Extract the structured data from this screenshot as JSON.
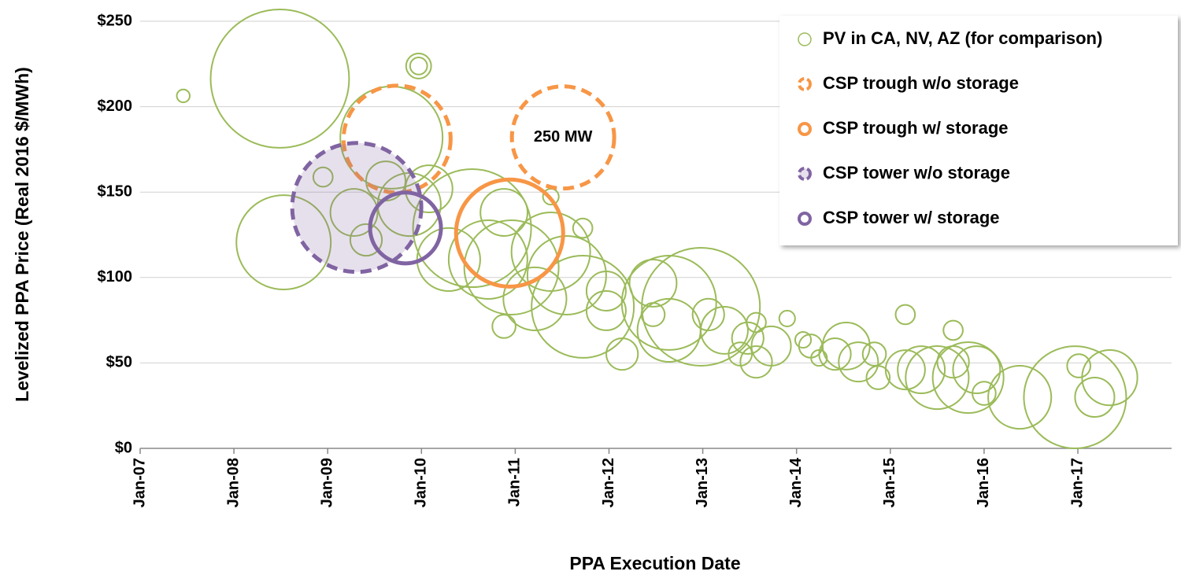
{
  "chart_data": {
    "type": "bubble",
    "x_label": "PPA Execution Date",
    "y_label": "Levelized PPA Price (Real 2016 $/MWh)",
    "annotation": "250 MW",
    "xlim": [
      2007,
      2018
    ],
    "ylim": [
      0,
      250
    ],
    "xticks": [
      {
        "value": 2007,
        "label": "Jan-07"
      },
      {
        "value": 2008,
        "label": "Jan-08"
      },
      {
        "value": 2009,
        "label": "Jan-09"
      },
      {
        "value": 2010,
        "label": "Jan-10"
      },
      {
        "value": 2011,
        "label": "Jan-11"
      },
      {
        "value": 2012,
        "label": "Jan-12"
      },
      {
        "value": 2013,
        "label": "Jan-13"
      },
      {
        "value": 2014,
        "label": "Jan-14"
      },
      {
        "value": 2015,
        "label": "Jan-15"
      },
      {
        "value": 2016,
        "label": "Jan-16"
      },
      {
        "value": 2017,
        "label": "Jan-17"
      }
    ],
    "yticks": [
      {
        "value": 0,
        "label": "$0"
      },
      {
        "value": 50,
        "label": "$50"
      },
      {
        "value": 100,
        "label": "$100"
      },
      {
        "value": 150,
        "label": "$150"
      },
      {
        "value": 200,
        "label": "$200"
      },
      {
        "value": 250,
        "label": "$250"
      }
    ],
    "grid": true,
    "legend": "upper right",
    "series": [
      {
        "name": "PV in CA, NV, AZ (for comparison)",
        "color": "#9bbb59",
        "dashed": false,
        "filled": false,
        "x": [
          2008.49,
          2007.46,
          2009.97,
          2009.97,
          2009.68,
          2008.53,
          2008.95,
          2009.28,
          2009.62,
          2009.41,
          2009.87,
          2010.08,
          2010.54,
          2010.29,
          2010.71,
          2010.88,
          2010.96,
          2011.38,
          2011.72,
          2011.21,
          2011.55,
          2011.72,
          2011.97,
          2011.38,
          2010.88,
          2012.47,
          2011.97,
          2012.14,
          2012.64,
          2012.98,
          2012.64,
          2012.47,
          2013.06,
          2013.23,
          2013.48,
          2013.4,
          2013.57,
          2013.9,
          2013.57,
          2013.73,
          2014.15,
          2014.07,
          2014.24,
          2014.41,
          2014.53,
          2014.66,
          2014.83,
          2014.87,
          2015.16,
          2015.16,
          2015.33,
          2015.5,
          2015.67,
          2015.83,
          2015.92,
          2016.0,
          2015.67,
          2016.38,
          2016.97,
          2017.18,
          2017.34,
          2017.01
        ],
        "values": [
          216.4,
          206.3,
          223.8,
          223.8,
          181.9,
          120.6,
          158.8,
          138.1,
          156.5,
          122.0,
          142.7,
          151.9,
          128.9,
          110.5,
          110.5,
          138.1,
          105.9,
          115.1,
          128.9,
          87.5,
          101.3,
          82.9,
          92.1,
          147.3,
          71.4,
          96.7,
          80.6,
          55.2,
          85.2,
          82.9,
          69.1,
          78.3,
          78.3,
          69.1,
          64.5,
          55.2,
          73.7,
          76.0,
          50.6,
          59.9,
          59.9,
          63.5,
          52.9,
          55.2,
          59.9,
          50.6,
          55.2,
          41.4,
          78.3,
          46.0,
          46.0,
          41.4,
          50.6,
          41.4,
          46.0,
          32.2,
          69.1,
          29.9,
          29.9,
          29.9,
          41.4,
          48.3
        ],
        "sizes": [
          458,
          4,
          7,
          15,
          250,
          213,
          9,
          53,
          37,
          24,
          95,
          53,
          333,
          95,
          148,
          53,
          213,
          148,
          9,
          95,
          148,
          250,
          37,
          6,
          13,
          53,
          37,
          24,
          213,
          333,
          95,
          13,
          24,
          53,
          24,
          13,
          9,
          6,
          24,
          37,
          13,
          6,
          6,
          24,
          53,
          37,
          13,
          13,
          9,
          37,
          53,
          95,
          24,
          120,
          53,
          13,
          9,
          95,
          250,
          37,
          73,
          13
        ]
      },
      {
        "name": "CSP trough w/o storage",
        "color": "#f79646",
        "dashed": true,
        "filled": false,
        "x": [
          2009.74,
          2011.51
        ],
        "values": [
          181,
          182
        ],
        "sizes": [
          274,
          250
        ]
      },
      {
        "name": "CSP trough w/ storage",
        "color": "#f79646",
        "dashed": false,
        "filled": false,
        "x": [
          2010.94
        ],
        "values": [
          126
        ],
        "sizes": [
          274
        ]
      },
      {
        "name": "CSP tower w/o storage",
        "color": "#8064a2",
        "dashed": true,
        "filled": true,
        "x": [
          2009.31
        ],
        "values": [
          141
        ],
        "sizes": [
          398
        ]
      },
      {
        "name": "CSP tower w/ storage",
        "color": "#8064a2",
        "dashed": false,
        "filled": false,
        "x": [
          2009.83
        ],
        "values": [
          129
        ],
        "sizes": [
          120
        ]
      }
    ]
  }
}
